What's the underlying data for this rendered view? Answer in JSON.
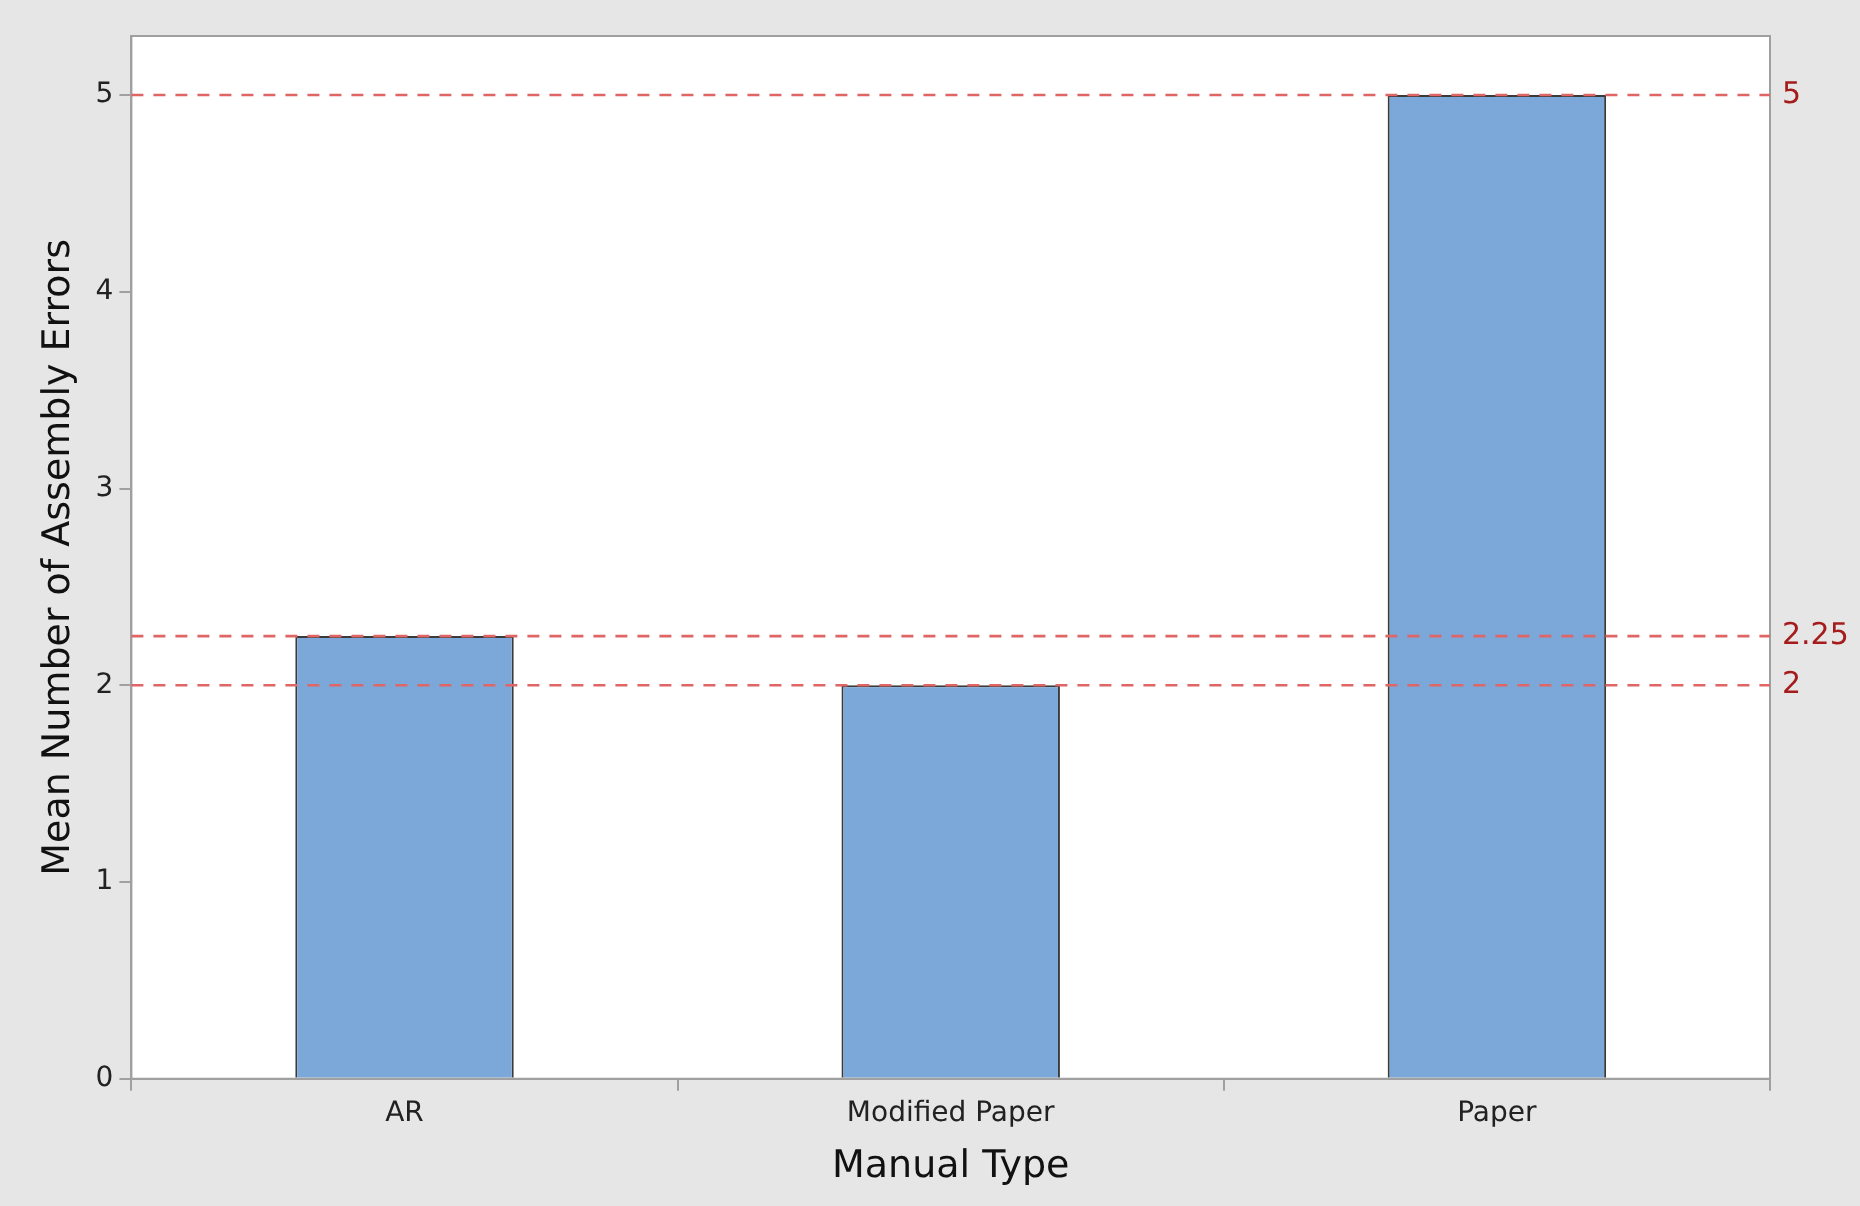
{
  "chart_data": {
    "type": "bar",
    "xlabel": "Manual Type",
    "ylabel": "Mean Number of Assembly Errors",
    "categories": [
      "AR",
      "Modified Paper",
      "Paper"
    ],
    "values": [
      2.25,
      2,
      5
    ],
    "color": "#7ba7d9",
    "ylim": [
      0,
      5.3
    ],
    "yticks": [
      0,
      1,
      2,
      3,
      4,
      5
    ],
    "grid": false,
    "legend": false,
    "ref_lines": [
      {
        "axis": "y",
        "value": 5,
        "label": "5",
        "color": "#e06666",
        "line_style": "dashed"
      },
      {
        "axis": "y",
        "value": 2.25,
        "label": "2.25",
        "color": "#e06666",
        "line_style": "dashed"
      },
      {
        "axis": "y",
        "value": 2,
        "label": "2",
        "color": "#e06666",
        "line_style": "dashed"
      }
    ]
  }
}
